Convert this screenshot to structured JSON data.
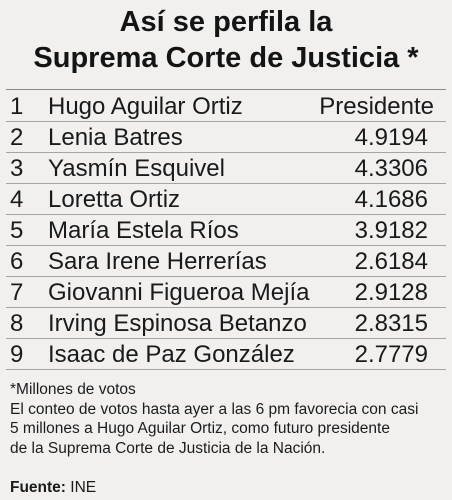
{
  "title": {
    "line1": "Así se perfila la",
    "line2": "Suprema Corte de Justicia *"
  },
  "rows": [
    {
      "num": "1",
      "name": "Hugo Aguilar Ortiz",
      "value": "Presidente"
    },
    {
      "num": "2",
      "name": "Lenia Batres",
      "value": "4.9194"
    },
    {
      "num": "3",
      "name": "Yasmín Esquivel",
      "value": "4.3306"
    },
    {
      "num": "4",
      "name": "Loretta Ortiz",
      "value": "4.1686"
    },
    {
      "num": "5",
      "name": "María Estela Ríos",
      "value": "3.9182"
    },
    {
      "num": "6",
      "name": "Sara Irene Herrerías",
      "value": "2.6184"
    },
    {
      "num": "7",
      "name": "Giovanni Figueroa Mejía",
      "value": "2.9128"
    },
    {
      "num": "8",
      "name": "Irving Espinosa Betanzo",
      "value": "2.8315"
    },
    {
      "num": "9",
      "name": "Isaac de Paz González",
      "value": "2.7779"
    }
  ],
  "notes": {
    "footnote": "*Millones de votos",
    "body_lines": [
      "El conteo de votos hasta ayer a las 6 pm favorecia con casi",
      "5 millones a Hugo Aguilar Ortiz, como futuro presidente",
      "de la Suprema Corte de Justicia de la Nación."
    ]
  },
  "source": {
    "label": "Fuente:",
    "value": "INE"
  },
  "colors": {
    "background": "#f1f0ef",
    "text": "#1a1a1a",
    "rule": "#a5a5a5"
  }
}
